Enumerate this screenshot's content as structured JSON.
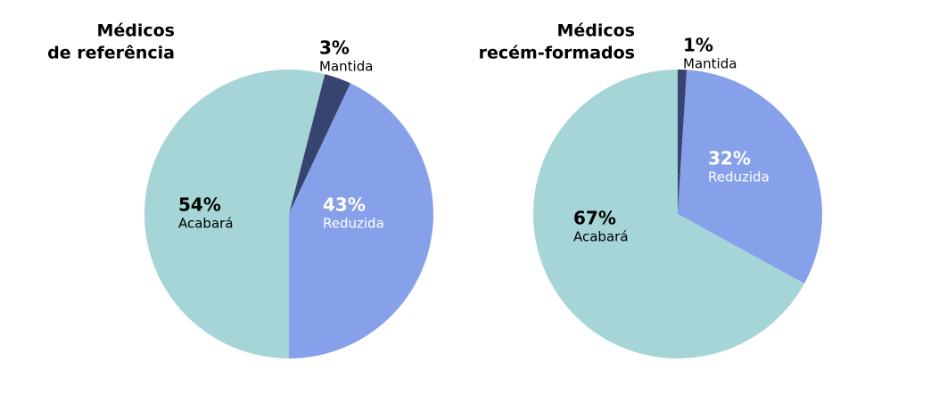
{
  "chart_data": [
    {
      "type": "pie",
      "title": [
        "Médicos",
        "de referência"
      ],
      "categories": [
        "Mantida",
        "Reduzida",
        "Acabará"
      ],
      "values": [
        3,
        43,
        54
      ],
      "value_labels": [
        "3%",
        "43%",
        "54%"
      ],
      "colors": [
        "#374470",
        "#87a0ea",
        "#a5d5d6"
      ]
    },
    {
      "type": "pie",
      "title": [
        "Médicos",
        "recém-formados"
      ],
      "categories": [
        "Mantida",
        "Reduzida",
        "Acabará"
      ],
      "values": [
        1,
        32,
        67
      ],
      "value_labels": [
        "1%",
        "32%",
        "67%"
      ],
      "colors": [
        "#374470",
        "#87a0ea",
        "#a5d5d6"
      ]
    }
  ]
}
